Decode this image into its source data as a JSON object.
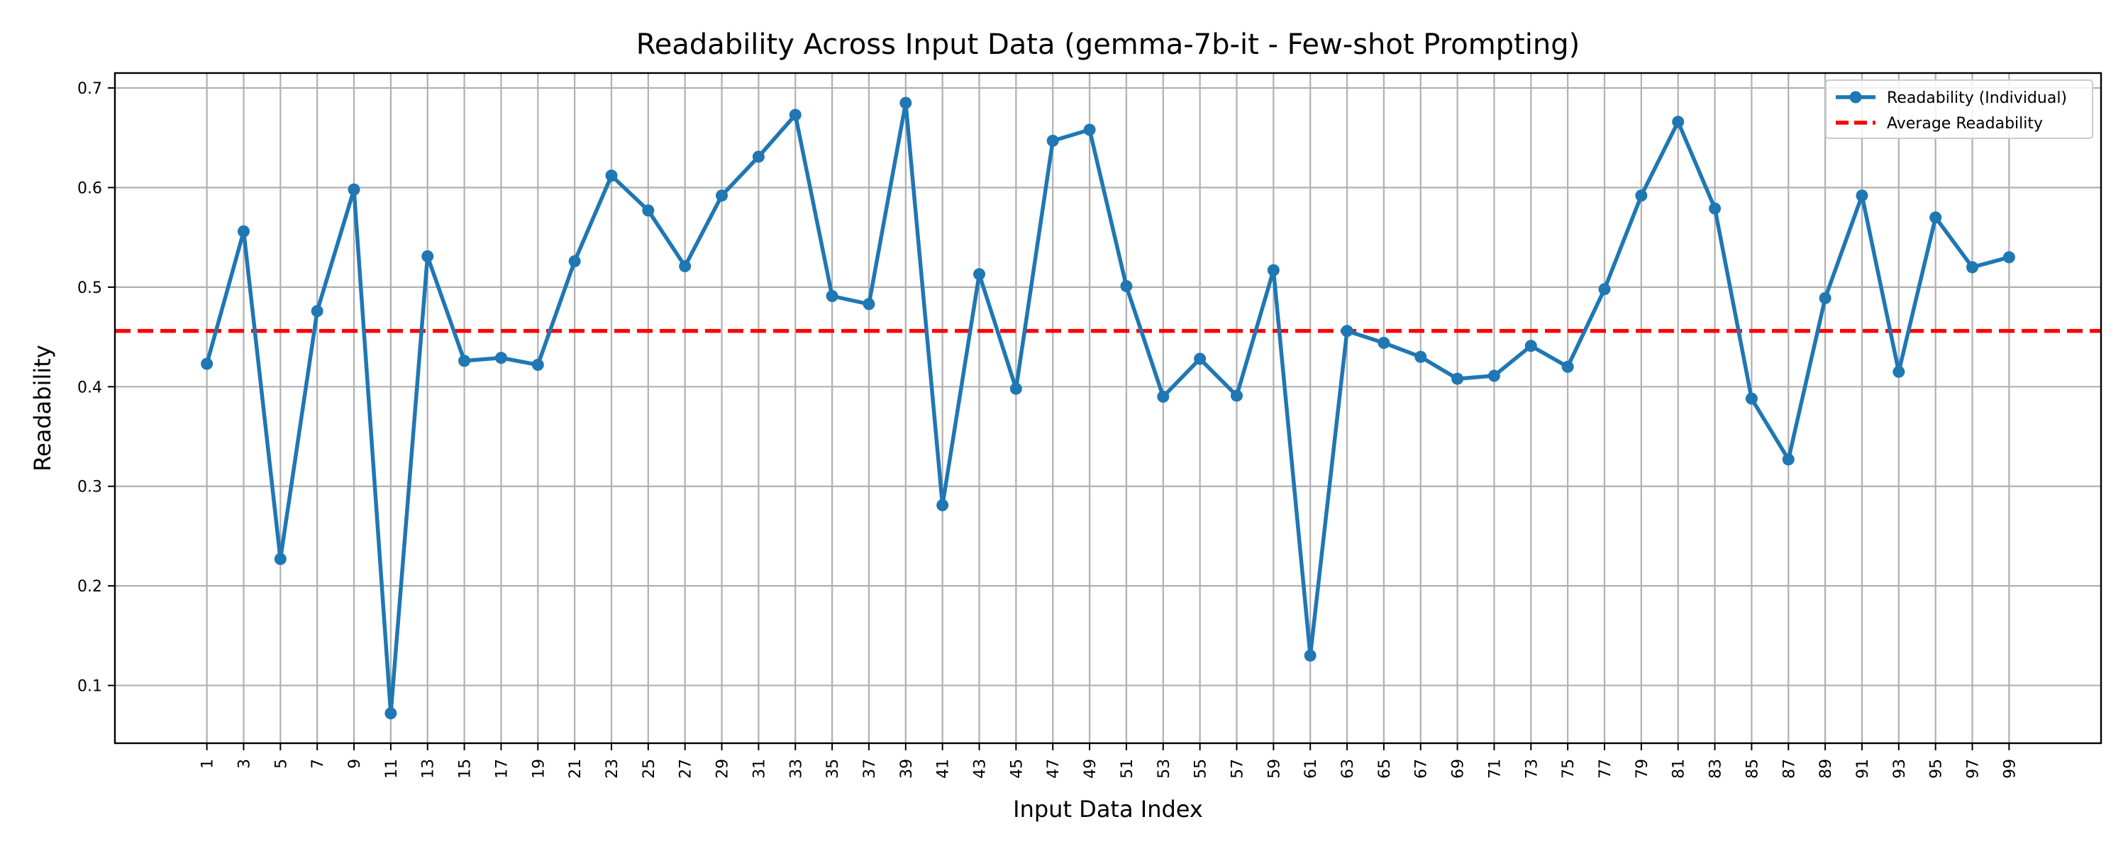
{
  "chart_data": {
    "type": "line",
    "title": "Readability Across Input Data (gemma-7b-it - Few-shot Prompting)",
    "xlabel": "Input Data Index",
    "ylabel": "Readability",
    "xlim": [
      -4,
      104
    ],
    "ylim": [
      0.042,
      0.715
    ],
    "x_ticks": [
      1,
      3,
      5,
      7,
      9,
      11,
      13,
      15,
      17,
      19,
      21,
      23,
      25,
      27,
      29,
      31,
      33,
      35,
      37,
      39,
      41,
      43,
      45,
      47,
      49,
      51,
      53,
      55,
      57,
      59,
      61,
      63,
      65,
      67,
      69,
      71,
      73,
      75,
      77,
      79,
      81,
      83,
      85,
      87,
      89,
      91,
      93,
      95,
      97,
      99
    ],
    "y_ticks": [
      0.1,
      0.2,
      0.3,
      0.4,
      0.5,
      0.6,
      0.7
    ],
    "grid": true,
    "legend_position": "top-right",
    "series": [
      {
        "name": "Readability (Individual)",
        "color": "#1f77b4",
        "style": "solid-with-markers",
        "x": [
          1,
          3,
          5,
          7,
          9,
          11,
          13,
          15,
          17,
          19,
          21,
          23,
          25,
          27,
          29,
          31,
          33,
          35,
          37,
          39,
          41,
          43,
          45,
          47,
          49,
          51,
          53,
          55,
          57,
          59,
          61,
          63,
          65,
          67,
          69,
          71,
          73,
          75,
          77,
          79,
          81,
          83,
          85,
          87,
          89,
          91,
          93,
          95,
          97,
          99
        ],
        "y": [
          0.423,
          0.556,
          0.227,
          0.476,
          0.598,
          0.072,
          0.531,
          0.426,
          0.429,
          0.422,
          0.526,
          0.612,
          0.577,
          0.521,
          0.592,
          0.631,
          0.673,
          0.491,
          0.483,
          0.685,
          0.281,
          0.513,
          0.398,
          0.647,
          0.658,
          0.501,
          0.39,
          0.428,
          0.391,
          0.517,
          0.13,
          0.456,
          0.444,
          0.43,
          0.408,
          0.411,
          0.441,
          0.42,
          0.498,
          0.592,
          0.666,
          0.579,
          0.388,
          0.327,
          0.489,
          0.592,
          0.415,
          0.57,
          0.52,
          0.53
        ]
      },
      {
        "name": "Average Readability",
        "color": "#ff0000",
        "style": "dashed",
        "y": 0.456
      }
    ]
  }
}
